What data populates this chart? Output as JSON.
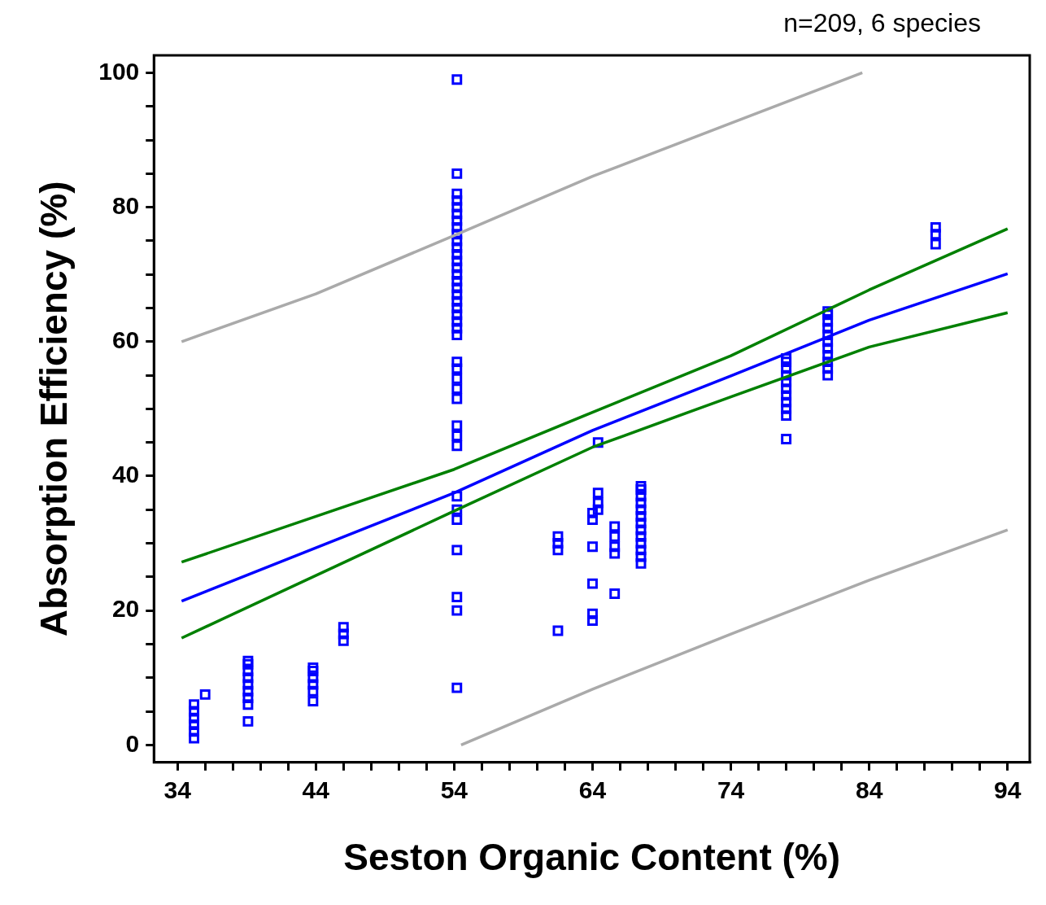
{
  "chart_data": {
    "type": "scatter",
    "xlabel": "Seston Organic Content (%)",
    "ylabel": "Absorption Efficiency (%)",
    "annotations": [
      "n=209, 6 species"
    ],
    "xlim": [
      32.3,
      95.6
    ],
    "ylim": [
      -2.6,
      102.6
    ],
    "xticks": [
      34,
      {
        "value": 36,
        "label": null
      },
      {
        "value": 38,
        "label": null
      },
      {
        "value": 40,
        "label": null
      },
      {
        "value": 42,
        "label": null
      },
      44,
      {
        "value": 46,
        "label": null
      },
      {
        "value": 48,
        "label": null
      },
      {
        "value": 50,
        "label": null
      },
      {
        "value": 52,
        "label": null
      },
      54,
      {
        "value": 56,
        "label": null
      },
      {
        "value": 58,
        "label": null
      },
      {
        "value": 60,
        "label": null
      },
      {
        "value": 62,
        "label": null
      },
      64,
      {
        "value": 66,
        "label": null
      },
      {
        "value": 68,
        "label": null
      },
      {
        "value": 70,
        "label": null
      },
      {
        "value": 72,
        "label": null
      },
      74,
      {
        "value": 76,
        "label": null
      },
      {
        "value": 78,
        "label": null
      },
      {
        "value": 80,
        "label": null
      },
      {
        "value": 82,
        "label": null
      },
      84,
      {
        "value": 86,
        "label": null
      },
      {
        "value": 88,
        "label": null
      },
      {
        "value": 90,
        "label": null
      },
      {
        "value": 92,
        "label": null
      },
      94
    ],
    "yticks": [
      0,
      {
        "value": 5,
        "label": null
      },
      {
        "value": 10,
        "label": null
      },
      {
        "value": 15,
        "label": null
      },
      20,
      {
        "value": 25,
        "label": null
      },
      {
        "value": 30,
        "label": null
      },
      {
        "value": 35,
        "label": null
      },
      40,
      {
        "value": 45,
        "label": null
      },
      {
        "value": 50,
        "label": null
      },
      {
        "value": 55,
        "label": null
      },
      60,
      {
        "value": 65,
        "label": null
      },
      {
        "value": 70,
        "label": null
      },
      {
        "value": 75,
        "label": null
      },
      80,
      {
        "value": 85,
        "label": null
      },
      {
        "value": 90,
        "label": null
      },
      {
        "value": 95,
        "label": null
      },
      100
    ],
    "grid": false,
    "legend": false,
    "series": [
      {
        "type": "line",
        "marker": "none",
        "line_style": "solid",
        "color": "#aaaaaa",
        "x": [
          34.3,
          44,
          54,
          64,
          74,
          83.5
        ],
        "values": [
          60,
          67.1,
          75.8,
          84.6,
          92.5,
          100
        ]
      },
      {
        "type": "line",
        "marker": "none",
        "line_style": "solid",
        "color": "#aaaaaa",
        "x": [
          54.5,
          64,
          74,
          84,
          94
        ],
        "values": [
          0,
          8.3,
          16.5,
          24.5,
          32
        ]
      },
      {
        "type": "line",
        "marker": "none",
        "line_style": "solid",
        "color": "#008000",
        "x": [
          34.3,
          54,
          64,
          74,
          84,
          94
        ],
        "values": [
          27.2,
          41,
          49.5,
          57.9,
          67.7,
          76.8
        ]
      },
      {
        "type": "line",
        "marker": "none",
        "line_style": "solid",
        "color": "#008000",
        "x": [
          34.3,
          54,
          64,
          74,
          84,
          94
        ],
        "values": [
          15.9,
          34.8,
          44.3,
          51.8,
          59.2,
          64.3
        ]
      },
      {
        "type": "line",
        "marker": "none",
        "line_style": "solid",
        "color": "#0000ff",
        "x": [
          34.3,
          54,
          64,
          74,
          84,
          94
        ],
        "values": [
          21.4,
          37.5,
          46.8,
          54.9,
          63.2,
          70.1
        ]
      },
      {
        "type": "scatter",
        "marker": "square",
        "color": "#0000ff",
        "x": [
          35.2,
          35.2,
          35.2,
          35.2,
          35.2,
          35.2,
          36,
          39.1,
          39.1,
          39.1,
          39.1,
          39.1,
          39.1,
          39.1,
          39.1,
          39.1,
          43.8,
          43.8,
          43.8,
          43.8,
          43.8,
          43.8,
          46,
          46,
          46,
          54.2,
          54.2,
          54.2,
          54.2,
          54.2,
          54.2,
          54.2,
          54.2,
          54.2,
          54.2,
          54.2,
          54.2,
          54.2,
          54.2,
          54.2,
          54.2,
          54.2,
          54.2,
          54.2,
          54.2,
          54.2,
          54.2,
          54.2,
          54.2,
          54.2,
          54.2,
          54.2,
          54.2,
          54.2,
          54.2,
          54.2,
          54.2,
          54.2,
          54.2,
          54.2,
          54.2,
          54.2,
          54.2,
          54.2,
          61.5,
          61.5,
          61.5,
          61.5,
          64,
          64,
          64,
          64,
          64,
          64,
          64.4,
          64.4,
          64.4,
          64.4,
          65.6,
          65.6,
          65.6,
          65.6,
          65.6,
          67.5,
          67.5,
          67.5,
          67.5,
          67.5,
          67.5,
          67.5,
          67.5,
          67.5,
          67.5,
          67.5,
          67.5,
          67.5,
          78,
          78,
          78,
          78,
          78,
          78,
          78,
          78,
          78,
          78,
          78,
          81,
          81,
          81,
          81,
          81,
          81,
          81,
          81,
          81,
          81,
          81,
          88.8,
          88.8,
          88.8
        ],
        "values": [
          1,
          2,
          3,
          4,
          5,
          6,
          7.5,
          3.5,
          6,
          7,
          8,
          9,
          10,
          11,
          12,
          12.5,
          6.5,
          8,
          9,
          10,
          11,
          11.5,
          15.5,
          16.5,
          17.5,
          8.5,
          20,
          22,
          29,
          33.5,
          35,
          37,
          44.5,
          46,
          47.5,
          51.5,
          53,
          54.5,
          56,
          57,
          61,
          62,
          63,
          64,
          65,
          66,
          67,
          68,
          69,
          70,
          71,
          72,
          73,
          74,
          75,
          76,
          77,
          78,
          79,
          80,
          81,
          82,
          85,
          99,
          17,
          29,
          30,
          31,
          18.5,
          19.5,
          24,
          29.5,
          33.5,
          34.5,
          35,
          36,
          37.5,
          45,
          22.5,
          28.5,
          29.5,
          31,
          32.5,
          27,
          28,
          29,
          30,
          31,
          32,
          33,
          34,
          35,
          36,
          37,
          38,
          38.5,
          45.5,
          49,
          50,
          51,
          52,
          53,
          54,
          55,
          56,
          57,
          57.5,
          55,
          56,
          57,
          58,
          59,
          60,
          61,
          62,
          63,
          64,
          64.5,
          74.5,
          76,
          77
        ]
      }
    ]
  }
}
